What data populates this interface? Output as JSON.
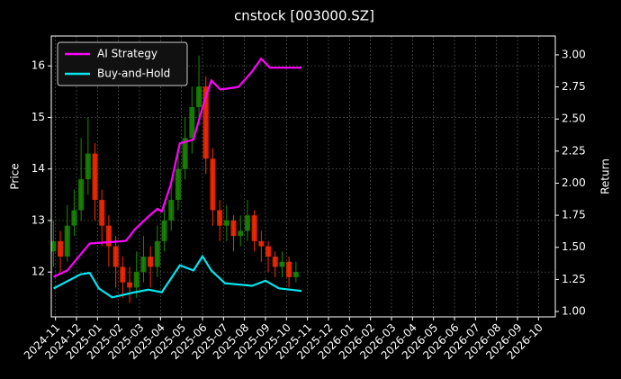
{
  "chart_data": {
    "type": "candlestick",
    "title": "cnstock [003000.SZ]",
    "ylabel": "Price",
    "y2label": "Return",
    "grid": true,
    "legend": "upper left",
    "xlim": [
      -0.2,
      23.8
    ],
    "xticks": [
      {
        "value": 0,
        "label": "2024-11"
      },
      {
        "value": 1,
        "label": "2024-12"
      },
      {
        "value": 2,
        "label": "2025-01"
      },
      {
        "value": 3,
        "label": "2025-02"
      },
      {
        "value": 4,
        "label": "2025-03"
      },
      {
        "value": 5,
        "label": "2025-04"
      },
      {
        "value": 6,
        "label": "2025-05"
      },
      {
        "value": 7,
        "label": "2025-06"
      },
      {
        "value": 8,
        "label": "2025-07"
      },
      {
        "value": 9,
        "label": "2025-08"
      },
      {
        "value": 10,
        "label": "2025-09"
      },
      {
        "value": 11,
        "label": "2025-10"
      },
      {
        "value": 12,
        "label": "2025-11"
      },
      {
        "value": 13,
        "label": "2025-12"
      },
      {
        "value": 14,
        "label": "2026-01"
      },
      {
        "value": 15,
        "label": "2026-02"
      },
      {
        "value": 16,
        "label": "2026-03"
      },
      {
        "value": 17,
        "label": "2026-04"
      },
      {
        "value": 18,
        "label": "2026-05"
      },
      {
        "value": 19,
        "label": "2026-06"
      },
      {
        "value": 20,
        "label": "2026-07"
      },
      {
        "value": 21,
        "label": "2026-08"
      },
      {
        "value": 22,
        "label": "2026-09"
      },
      {
        "value": 23,
        "label": "2026-10"
      }
    ],
    "ylim": [
      11.13,
      16.58
    ],
    "yticks": [
      12,
      13,
      14,
      15,
      16
    ],
    "y2lim": [
      0.958,
      3.147
    ],
    "y2ticks": [
      {
        "value": 1,
        "label": "1.00"
      },
      1.25,
      {
        "value": 1.5,
        "label": "1.50"
      },
      1.75,
      {
        "value": 2,
        "label": "2.00"
      },
      2.25,
      {
        "value": 2.5,
        "label": "2.50"
      },
      2.75,
      {
        "value": 3,
        "label": "3.00"
      }
    ],
    "ohlc": {
      "up_color": "#1a8a00",
      "down_color": "#ff2a00",
      "x": [
        -0.1,
        0.23,
        0.56,
        0.89,
        1.22,
        1.55,
        1.88,
        2.21,
        2.54,
        2.87,
        3.2,
        3.53,
        3.86,
        4.19,
        4.52,
        4.85,
        5.18,
        5.51,
        5.84,
        6.17,
        6.5,
        6.83,
        7.16,
        7.49,
        7.82,
        8.15,
        8.48,
        8.81,
        9.14,
        9.47,
        9.8,
        10.13,
        10.46,
        10.79,
        11.12,
        11.45
      ],
      "open": [
        12.4,
        12.6,
        12.3,
        12.9,
        13.2,
        13.8,
        14.3,
        13.4,
        12.9,
        12.5,
        12.1,
        11.8,
        11.7,
        12.0,
        12.3,
        12.1,
        12.6,
        13.0,
        13.4,
        14.0,
        14.6,
        15.2,
        15.6,
        14.2,
        13.2,
        12.9,
        13.0,
        12.7,
        12.8,
        13.1,
        12.6,
        12.5,
        12.3,
        12.1,
        12.2,
        11.9
      ],
      "high": [
        13.0,
        12.8,
        13.3,
        13.6,
        14.6,
        15.0,
        14.5,
        13.6,
        13.1,
        12.7,
        12.3,
        12.1,
        12.4,
        12.7,
        12.5,
        12.9,
        13.3,
        13.7,
        14.4,
        15.0,
        15.6,
        16.2,
        15.8,
        14.4,
        13.4,
        13.3,
        13.1,
        13.1,
        13.4,
        13.2,
        12.8,
        12.6,
        12.4,
        12.4,
        12.3,
        12.2
      ],
      "low": [
        12.1,
        12.0,
        12.2,
        12.7,
        13.0,
        13.5,
        13.0,
        12.5,
        12.1,
        11.7,
        11.5,
        11.4,
        11.5,
        11.8,
        11.7,
        11.9,
        12.4,
        12.8,
        13.2,
        13.8,
        14.3,
        14.9,
        13.9,
        12.9,
        12.6,
        12.6,
        12.4,
        12.5,
        12.6,
        12.4,
        12.2,
        12.0,
        11.9,
        11.9,
        11.7,
        11.8
      ],
      "close": [
        12.6,
        12.3,
        12.9,
        13.2,
        13.8,
        14.3,
        13.4,
        12.9,
        12.5,
        12.1,
        11.8,
        11.7,
        12.0,
        12.3,
        12.1,
        12.6,
        13.0,
        13.4,
        14.0,
        14.6,
        15.2,
        15.6,
        14.2,
        13.2,
        12.9,
        13.0,
        12.7,
        12.8,
        13.1,
        12.6,
        12.5,
        12.3,
        12.1,
        12.2,
        11.9,
        12.0
      ]
    },
    "series": [
      {
        "name": "AI Strategy",
        "color": "#ff00ff",
        "axis": "y2",
        "x": [
          -0.09,
          0.56,
          1.63,
          3.35,
          3.78,
          4.42,
          4.85,
          5.06,
          5.49,
          5.92,
          6.57,
          7.0,
          7.42,
          7.85,
          8.71,
          9.36,
          9.79,
          10.21,
          11.72
        ],
        "values": [
          1.27,
          1.32,
          1.53,
          1.55,
          1.64,
          1.74,
          1.8,
          1.78,
          1.99,
          2.31,
          2.34,
          2.59,
          2.8,
          2.73,
          2.75,
          2.87,
          2.97,
          2.9,
          2.9
        ]
      },
      {
        "name": "Buy-and-Hold",
        "color": "#00e5ee",
        "axis": "y2",
        "x": [
          -0.09,
          1.2,
          1.63,
          2.06,
          2.7,
          3.78,
          4.42,
          5.06,
          5.92,
          6.57,
          7.0,
          7.42,
          8.07,
          9.36,
          10.0,
          10.64,
          11.72
        ],
        "values": [
          1.18,
          1.29,
          1.3,
          1.18,
          1.11,
          1.15,
          1.17,
          1.15,
          1.36,
          1.32,
          1.43,
          1.32,
          1.22,
          1.2,
          1.24,
          1.18,
          1.16
        ]
      }
    ]
  }
}
